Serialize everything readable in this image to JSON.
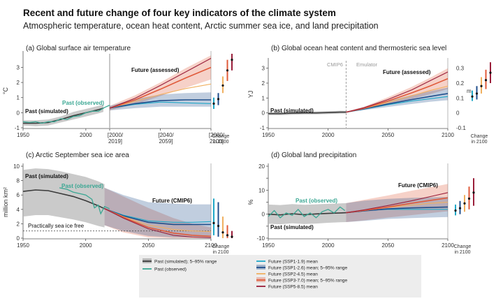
{
  "title": "Recent and future change of four key indicators of the climate system",
  "subtitle": "Atmospheric temperature, ocean heat content, Arctic summer sea ice, and land precipitation",
  "colors": {
    "past_sim": "#3a3a3a",
    "past_sim_band": "#b8b8b8",
    "past_obs": "#3aa793",
    "ssp119": "#1fa8c8",
    "ssp126": "#1f4e8c",
    "ssp245": "#f0b060",
    "ssp370": "#e05a3a",
    "ssp585": "#9a1e3a"
  },
  "legend": [
    {
      "key": "past_sim",
      "label": "Past (simulated); 5–95% range",
      "band": true
    },
    {
      "key": "past_obs",
      "label": "Past (observed)",
      "band": false
    },
    {
      "key": "ssp119",
      "label": "Future (SSP1-1.9) mean",
      "band": false
    },
    {
      "key": "ssp126",
      "label": "Future (SSP1-2.6) mean; 5–95% range",
      "band": true
    },
    {
      "key": "ssp245",
      "label": "Future (SSP2-4.5) mean",
      "band": false
    },
    {
      "key": "ssp370",
      "label": "Future (SSP3-7.0) mean; 5–95% range",
      "band": true
    },
    {
      "key": "ssp585",
      "label": "Future (SSP5-8.5) mean",
      "band": false
    }
  ],
  "chart_data": [
    {
      "id": "a",
      "type": "line",
      "title": "(a) Global surface air temperature",
      "ylabel": "°C",
      "xlim": [
        1950,
        2100
      ],
      "ylim": [
        -1,
        3.9
      ],
      "yticks": [
        -1,
        0,
        1,
        2,
        3
      ],
      "xticklabels": [
        "1950",
        "2000",
        "[2000/\n2019]",
        "[2040/\n2059]",
        "[2080/\n2100]"
      ],
      "annotations": [
        "Past (simulated)",
        "Past (observed)",
        "Future (assessed)"
      ],
      "change_label": "Change\nin 2100",
      "past_sim": {
        "x": [
          1950,
          1960,
          1970,
          1980,
          1990,
          2000,
          2010,
          2014
        ],
        "y": [
          -0.7,
          -0.7,
          -0.65,
          -0.45,
          -0.2,
          0.0,
          0.2,
          0.3
        ],
        "lo": [
          -0.85,
          -0.9,
          -0.85,
          -0.65,
          -0.45,
          -0.25,
          -0.05,
          0.05
        ],
        "hi": [
          -0.5,
          -0.5,
          -0.45,
          -0.25,
          0.05,
          0.25,
          0.45,
          0.55
        ]
      },
      "past_obs": {
        "x": [
          1950,
          1955,
          1960,
          1965,
          1970,
          1975,
          1980,
          1985,
          1990,
          1995,
          2000,
          2005,
          2010,
          2015,
          2019
        ],
        "y": [
          -0.6,
          -0.65,
          -0.6,
          -0.7,
          -0.6,
          -0.6,
          -0.4,
          -0.45,
          -0.25,
          -0.2,
          0.0,
          0.1,
          0.1,
          0.35,
          0.5
        ]
      },
      "future_x": [
        2020,
        2040,
        2060,
        2080,
        2100
      ],
      "future": {
        "ssp119": [
          0.3,
          0.55,
          0.7,
          0.65,
          0.6
        ],
        "ssp126": [
          0.3,
          0.6,
          0.8,
          0.85,
          0.85
        ],
        "ssp245": [
          0.3,
          0.75,
          1.2,
          1.6,
          1.9
        ],
        "ssp370": [
          0.3,
          0.85,
          1.55,
          2.3,
          3.0
        ],
        "ssp585": [
          0.3,
          0.95,
          1.8,
          2.7,
          3.6
        ]
      },
      "bands": {
        "ssp126": {
          "lo": [
            0.15,
            0.3,
            0.4,
            0.4,
            0.4
          ],
          "hi": [
            0.45,
            0.9,
            1.2,
            1.3,
            1.35
          ]
        },
        "ssp370": {
          "lo": [
            0.15,
            0.55,
            1.1,
            1.65,
            2.2
          ],
          "hi": [
            0.45,
            1.15,
            2.0,
            2.95,
            3.8
          ]
        }
      },
      "change_2100": {
        "ssp119": {
          "mid": 0.6,
          "lo": 0.25,
          "hi": 1.0
        },
        "ssp126": {
          "mid": 0.9,
          "lo": 0.5,
          "hi": 1.3
        },
        "ssp245": {
          "mid": 1.8,
          "lo": 1.3,
          "hi": 2.4
        },
        "ssp370": {
          "mid": 2.8,
          "lo": 2.1,
          "hi": 3.5
        },
        "ssp585": {
          "mid": 3.5,
          "lo": 2.8,
          "hi": 4.4
        }
      }
    },
    {
      "id": "b",
      "type": "line",
      "title": "(b) Global ocean heat content and thermosteric sea level",
      "ylabel": "YJ",
      "ylabel_right": "m",
      "xlim": [
        1950,
        2100
      ],
      "ylim": [
        -1,
        3.5
      ],
      "yticks": [
        -1,
        0,
        1,
        2,
        3
      ],
      "right_ticks": [
        "-0.1",
        "0",
        "0.1",
        "0.2",
        "0.3"
      ],
      "xticklabels": [
        "1950",
        "2000",
        "2050",
        "2100"
      ],
      "divider_x": 2015,
      "annotations": [
        "Past (simulated)",
        "Future (assessed)",
        "CMIP6",
        "Emulator"
      ],
      "change_label": "Change\nin 2100",
      "past_sim": {
        "x": [
          1950,
          1960,
          1970,
          1980,
          1990,
          2000,
          2010,
          2015
        ],
        "y": [
          -0.05,
          -0.05,
          -0.02,
          0.0,
          0.0,
          0.02,
          0.05,
          0.05
        ],
        "lo": [
          -0.15,
          -0.15,
          -0.12,
          -0.1,
          -0.1,
          -0.08,
          -0.05,
          -0.04
        ],
        "hi": [
          0.05,
          0.05,
          0.08,
          0.1,
          0.1,
          0.12,
          0.15,
          0.14
        ]
      },
      "future_x": [
        2015,
        2030,
        2050,
        2070,
        2085,
        2100
      ],
      "future": {
        "ssp119": [
          0.05,
          0.25,
          0.55,
          0.8,
          0.95,
          1.1
        ],
        "ssp126": [
          0.05,
          0.27,
          0.6,
          0.9,
          1.1,
          1.3
        ],
        "ssp245": [
          0.05,
          0.3,
          0.7,
          1.15,
          1.5,
          1.8
        ],
        "ssp370": [
          0.05,
          0.32,
          0.8,
          1.35,
          1.8,
          2.3
        ],
        "ssp585": [
          0.05,
          0.35,
          0.9,
          1.55,
          2.15,
          2.75
        ]
      },
      "bands": {
        "ssp126": {
          "lo": [
            0.03,
            0.18,
            0.4,
            0.6,
            0.75,
            0.85
          ],
          "hi": [
            0.07,
            0.35,
            0.8,
            1.2,
            1.45,
            1.7
          ]
        },
        "ssp370": {
          "lo": [
            0.03,
            0.22,
            0.55,
            0.95,
            1.25,
            1.6
          ],
          "hi": [
            0.07,
            0.42,
            1.05,
            1.75,
            2.35,
            3.0
          ]
        }
      },
      "change_2100": {
        "ssp119": {
          "mid": 1.1,
          "lo": 0.8,
          "hi": 1.5
        },
        "ssp126": {
          "mid": 1.3,
          "lo": 0.9,
          "hi": 1.8
        },
        "ssp245": {
          "mid": 1.8,
          "lo": 1.3,
          "hi": 2.4
        },
        "ssp370": {
          "mid": 2.2,
          "lo": 1.6,
          "hi": 2.9
        },
        "ssp585": {
          "mid": 2.7,
          "lo": 2.0,
          "hi": 3.4
        }
      }
    },
    {
      "id": "c",
      "type": "line",
      "title": "(c) Arctic September sea ice area",
      "ylabel": "million km²",
      "xlim": [
        1950,
        2100
      ],
      "ylim": [
        0,
        10
      ],
      "yticks": [
        0,
        2,
        4,
        6,
        8,
        10
      ],
      "xticklabels": [
        "1950",
        "2000",
        "2050",
        "2100"
      ],
      "threshold": 1,
      "annotations": [
        "Past (simulated)",
        "Past (observed)",
        "Future (CMIP6)",
        "Practically sea ice free"
      ],
      "change_label": "Change\nin 2100",
      "past_sim": {
        "x": [
          1950,
          1960,
          1970,
          1980,
          1990,
          2000,
          2010,
          2015
        ],
        "y": [
          6.5,
          6.7,
          6.6,
          6.2,
          5.8,
          5.2,
          4.5,
          4.1
        ],
        "lo": [
          3.0,
          3.2,
          3.2,
          2.9,
          2.6,
          2.2,
          1.7,
          1.5
        ],
        "hi": [
          9.5,
          9.7,
          9.6,
          9.3,
          8.9,
          8.5,
          7.9,
          7.5
        ]
      },
      "past_obs": {
        "x": [
          1979,
          1985,
          1990,
          1995,
          2000,
          2005,
          2007,
          2010,
          2012,
          2015,
          2019
        ],
        "y": [
          7.0,
          6.8,
          6.4,
          6.2,
          6.0,
          5.4,
          4.2,
          4.6,
          3.4,
          4.4,
          4.1
        ]
      },
      "future_x": [
        2015,
        2030,
        2050,
        2070,
        2085,
        2100
      ],
      "future": {
        "ssp119": [
          4.1,
          3.2,
          2.4,
          2.2,
          2.2,
          2.3
        ],
        "ssp126": [
          4.1,
          3.1,
          2.2,
          1.9,
          1.9,
          1.9
        ],
        "ssp245": [
          4.1,
          3.0,
          1.8,
          1.2,
          1.0,
          0.9
        ],
        "ssp370": [
          4.1,
          2.9,
          1.5,
          0.7,
          0.4,
          0.25
        ],
        "ssp585": [
          4.1,
          2.8,
          1.3,
          0.4,
          0.15,
          0.05
        ]
      },
      "bands": {
        "ssp126": {
          "lo": [
            1.8,
            1.0,
            0.3,
            0.1,
            0.1,
            0.1
          ],
          "hi": [
            7.0,
            6.0,
            5.0,
            4.8,
            4.7,
            4.7
          ]
        },
        "ssp370": {
          "lo": [
            1.8,
            0.8,
            0.1,
            0.0,
            0.0,
            0.0
          ],
          "hi": [
            7.0,
            5.8,
            4.2,
            2.8,
            2.0,
            1.5
          ]
        }
      },
      "change_2100": {
        "ssp119": {
          "mid": 2.1,
          "lo": 0.4,
          "hi": 5.5
        },
        "ssp126": {
          "mid": 1.7,
          "lo": 0.2,
          "hi": 5.0
        },
        "ssp245": {
          "mid": 0.8,
          "lo": 0.0,
          "hi": 3.0
        },
        "ssp370": {
          "mid": 0.4,
          "lo": 0.0,
          "hi": 1.8
        },
        "ssp585": {
          "mid": 0.2,
          "lo": 0.0,
          "hi": 1.0
        }
      }
    },
    {
      "id": "d",
      "type": "line",
      "title": "(d) Global land precipitation",
      "ylabel": "%",
      "xlim": [
        1950,
        2100
      ],
      "ylim": [
        -10,
        20
      ],
      "yticks": [
        -10,
        -5,
        0,
        5,
        10,
        15,
        20
      ],
      "yticklabels": [
        "-10",
        "",
        "0",
        "",
        "10",
        "",
        "20"
      ],
      "xticklabels": [
        "1950",
        "2000",
        "2050",
        "2100"
      ],
      "annotations": [
        "Past (simulated)",
        "Past (observed)",
        "Future (CMIP6)"
      ],
      "change_label": "Change\nin 2100",
      "past_sim": {
        "x": [
          1950,
          1960,
          1970,
          1980,
          1990,
          2000,
          2010,
          2015
        ],
        "y": [
          0.0,
          -0.3,
          0.2,
          -0.2,
          0.1,
          0.3,
          0.5,
          0.6
        ],
        "lo": [
          -4.0,
          -4.2,
          -3.8,
          -4.1,
          -3.9,
          -3.6,
          -3.4,
          -3.3
        ],
        "hi": [
          4.0,
          3.8,
          4.2,
          3.9,
          4.1,
          4.3,
          4.5,
          4.6
        ]
      },
      "past_obs": {
        "x": [
          1950,
          1955,
          1960,
          1965,
          1970,
          1975,
          1980,
          1985,
          1990,
          1995,
          2000,
          2005,
          2010,
          2014
        ],
        "y": [
          -1.0,
          1.5,
          -1.5,
          0.5,
          -0.5,
          2.0,
          -1.0,
          0.5,
          -1.5,
          1.0,
          2.0,
          0.5,
          3.0,
          1.5
        ]
      },
      "future_x": [
        2015,
        2030,
        2050,
        2070,
        2085,
        2100
      ],
      "future": {
        "ssp119": [
          0.6,
          1.5,
          2.0,
          2.0,
          2.0,
          2.0
        ],
        "ssp126": [
          0.6,
          1.4,
          2.2,
          2.6,
          2.8,
          3.0
        ],
        "ssp245": [
          0.6,
          1.5,
          2.8,
          3.8,
          4.5,
          5.0
        ],
        "ssp370": [
          0.6,
          1.6,
          3.0,
          4.6,
          5.7,
          6.8
        ],
        "ssp585": [
          0.6,
          1.8,
          3.6,
          5.6,
          7.3,
          9.0
        ]
      },
      "bands": {
        "ssp126": {
          "lo": [
            -3.3,
            -2.8,
            -2.0,
            -1.6,
            -1.4,
            -1.2
          ],
          "hi": [
            4.6,
            5.6,
            6.4,
            6.8,
            7.0,
            7.2
          ]
        },
        "ssp370": {
          "lo": [
            -3.3,
            -2.6,
            -1.4,
            -0.4,
            0.4,
            1.2
          ],
          "hi": [
            4.6,
            6.0,
            7.8,
            9.8,
            11.2,
            12.6
          ]
        }
      },
      "change_2100": {
        "ssp119": {
          "mid": 1.5,
          "lo": -0.5,
          "hi": 4.0
        },
        "ssp126": {
          "mid": 2.5,
          "lo": 0.0,
          "hi": 5.5
        },
        "ssp245": {
          "mid": 4.5,
          "lo": 1.0,
          "hi": 8.0
        },
        "ssp370": {
          "mid": 6.5,
          "lo": 2.0,
          "hi": 11.5
        },
        "ssp585": {
          "mid": 9.0,
          "lo": 3.5,
          "hi": 15.0
        }
      }
    }
  ]
}
